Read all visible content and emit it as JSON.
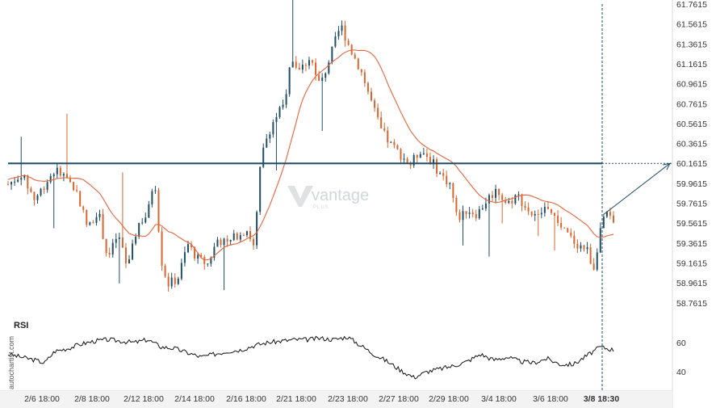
{
  "chart_data": [
    {
      "type": "candlestick",
      "title": "",
      "y_ticks": [
        61.7615,
        61.5615,
        61.3615,
        61.1615,
        60.9615,
        60.7615,
        60.5615,
        60.3615,
        60.1615,
        59.9615,
        59.7615,
        59.5615,
        59.3615,
        59.1615,
        58.9615,
        58.7615
      ],
      "y_tick_labels": [
        "61.7615",
        "61.5615",
        "61.3615",
        "61.1615",
        "60.9615",
        "60.7615",
        "60.5615",
        "60.3615",
        "60.1615",
        "59.9615",
        "59.7615",
        "59.5615",
        "59.3615",
        "59.1615",
        "58.9615",
        "58.7615"
      ],
      "x_tick_labels": [
        "2/6 18:00",
        "2/8 18:00",
        "2/12 18:00",
        "2/14 18:00",
        "2/16 18:00",
        "2/21 18:00",
        "2/23 18:00",
        "2/27 18:00",
        "2/29 18:00",
        "3/4 18:00",
        "3/6 18:00",
        "3/8 18:30"
      ],
      "highlighted_x_label": "3/8 18:30",
      "ylim": [
        58.65,
        61.8
      ],
      "support_resistance_level": 60.1615,
      "moving_average_color": "#e8643a",
      "bull_color": "#1f4e66",
      "bear_color": "#d9662e",
      "level_color": "#1f4e66",
      "price_path": [
        {
          "x": 0,
          "y": 59.95
        },
        {
          "x": 4,
          "y": 60.05
        },
        {
          "x": 8,
          "y": 59.8
        },
        {
          "x": 11,
          "y": 59.95
        },
        {
          "x": 14,
          "y": 60.1
        },
        {
          "x": 18,
          "y": 60.0
        },
        {
          "x": 21,
          "y": 59.85
        },
        {
          "x": 24,
          "y": 59.5
        },
        {
          "x": 27,
          "y": 59.7
        },
        {
          "x": 30,
          "y": 59.2
        },
        {
          "x": 33,
          "y": 59.45
        },
        {
          "x": 36,
          "y": 59.1
        },
        {
          "x": 39,
          "y": 59.55
        },
        {
          "x": 42,
          "y": 59.65
        },
        {
          "x": 44,
          "y": 60.05
        },
        {
          "x": 46,
          "y": 59.2
        },
        {
          "x": 48,
          "y": 58.95
        },
        {
          "x": 51,
          "y": 59.0
        },
        {
          "x": 54,
          "y": 59.35
        },
        {
          "x": 57,
          "y": 59.2
        },
        {
          "x": 60,
          "y": 59.15
        },
        {
          "x": 63,
          "y": 59.4
        },
        {
          "x": 66,
          "y": 59.35
        },
        {
          "x": 69,
          "y": 59.45
        },
        {
          "x": 72,
          "y": 59.5
        },
        {
          "x": 74,
          "y": 59.3
        },
        {
          "x": 76,
          "y": 60.2
        },
        {
          "x": 78,
          "y": 60.45
        },
        {
          "x": 80,
          "y": 60.6
        },
        {
          "x": 83,
          "y": 60.75
        },
        {
          "x": 85,
          "y": 61.2
        },
        {
          "x": 88,
          "y": 61.1
        },
        {
          "x": 91,
          "y": 61.25
        },
        {
          "x": 93,
          "y": 60.95
        },
        {
          "x": 95,
          "y": 61.05
        },
        {
          "x": 97,
          "y": 61.25
        },
        {
          "x": 100,
          "y": 61.55
        },
        {
          "x": 103,
          "y": 61.3
        },
        {
          "x": 106,
          "y": 61.1
        },
        {
          "x": 109,
          "y": 60.8
        },
        {
          "x": 112,
          "y": 60.5
        },
        {
          "x": 115,
          "y": 60.35
        },
        {
          "x": 118,
          "y": 60.25
        },
        {
          "x": 121,
          "y": 60.15
        },
        {
          "x": 124,
          "y": 60.3
        },
        {
          "x": 127,
          "y": 60.2
        },
        {
          "x": 130,
          "y": 60.05
        },
        {
          "x": 133,
          "y": 59.95
        },
        {
          "x": 135,
          "y": 59.6
        },
        {
          "x": 138,
          "y": 59.7
        },
        {
          "x": 141,
          "y": 59.65
        },
        {
          "x": 144,
          "y": 59.8
        },
        {
          "x": 147,
          "y": 59.9
        },
        {
          "x": 150,
          "y": 59.75
        },
        {
          "x": 153,
          "y": 59.85
        },
        {
          "x": 156,
          "y": 59.7
        },
        {
          "x": 159,
          "y": 59.6
        },
        {
          "x": 162,
          "y": 59.75
        },
        {
          "x": 165,
          "y": 59.55
        },
        {
          "x": 168,
          "y": 59.45
        },
        {
          "x": 171,
          "y": 59.35
        },
        {
          "x": 174,
          "y": 59.3
        },
        {
          "x": 176,
          "y": 59.1
        },
        {
          "x": 178,
          "y": 59.5
        },
        {
          "x": 180,
          "y": 59.65
        },
        {
          "x": 182,
          "y": 59.55
        }
      ],
      "rsi": {
        "title": "RSI",
        "y_ticks": [
          60,
          40
        ],
        "ylim": [
          31,
          71
        ],
        "values": [
          {
            "x": 0,
            "y": 52
          },
          {
            "x": 4,
            "y": 50
          },
          {
            "x": 8,
            "y": 48
          },
          {
            "x": 11,
            "y": 46
          },
          {
            "x": 14,
            "y": 54
          },
          {
            "x": 18,
            "y": 56
          },
          {
            "x": 22,
            "y": 59
          },
          {
            "x": 26,
            "y": 61
          },
          {
            "x": 30,
            "y": 62
          },
          {
            "x": 34,
            "y": 61
          },
          {
            "x": 38,
            "y": 60
          },
          {
            "x": 42,
            "y": 62
          },
          {
            "x": 46,
            "y": 57
          },
          {
            "x": 50,
            "y": 56
          },
          {
            "x": 54,
            "y": 53
          },
          {
            "x": 58,
            "y": 50
          },
          {
            "x": 62,
            "y": 52
          },
          {
            "x": 66,
            "y": 54
          },
          {
            "x": 70,
            "y": 55
          },
          {
            "x": 74,
            "y": 58
          },
          {
            "x": 78,
            "y": 60
          },
          {
            "x": 82,
            "y": 61
          },
          {
            "x": 86,
            "y": 62
          },
          {
            "x": 90,
            "y": 62
          },
          {
            "x": 94,
            "y": 63
          },
          {
            "x": 98,
            "y": 62
          },
          {
            "x": 102,
            "y": 64
          },
          {
            "x": 106,
            "y": 58
          },
          {
            "x": 110,
            "y": 52
          },
          {
            "x": 114,
            "y": 47
          },
          {
            "x": 118,
            "y": 41
          },
          {
            "x": 122,
            "y": 36
          },
          {
            "x": 126,
            "y": 40
          },
          {
            "x": 130,
            "y": 42
          },
          {
            "x": 134,
            "y": 44
          },
          {
            "x": 138,
            "y": 47
          },
          {
            "x": 142,
            "y": 52
          },
          {
            "x": 146,
            "y": 48
          },
          {
            "x": 150,
            "y": 50
          },
          {
            "x": 154,
            "y": 47
          },
          {
            "x": 158,
            "y": 46
          },
          {
            "x": 162,
            "y": 49
          },
          {
            "x": 166,
            "y": 45
          },
          {
            "x": 170,
            "y": 45
          },
          {
            "x": 174,
            "y": 51
          },
          {
            "x": 178,
            "y": 57
          },
          {
            "x": 182,
            "y": 55
          }
        ]
      },
      "projection_target": 60.1615,
      "watermark": {
        "brand": "vantage",
        "sub": "PLUS"
      },
      "source": "autochartist.com"
    }
  ]
}
